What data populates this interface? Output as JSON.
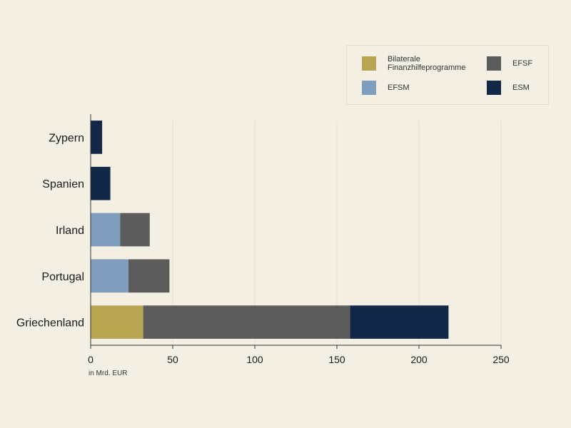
{
  "chart_data": {
    "type": "bar",
    "orientation": "horizontal",
    "stacked": true,
    "title": "",
    "xlabel": "in Mrd. EUR",
    "ylabel": "",
    "xlim": [
      0,
      250
    ],
    "xticks": [
      0,
      50,
      100,
      150,
      200,
      250
    ],
    "grid": true,
    "legend_position": "top-right",
    "categories": [
      "Zypern",
      "Spanien",
      "Irland",
      "Portugal",
      "Griechenland"
    ],
    "series": [
      {
        "name": "Bilaterale Finanzhilfeprogramme",
        "color": "#b8a552",
        "values": [
          0,
          0,
          0,
          0,
          32
        ]
      },
      {
        "name": "EFSM",
        "color": "#7f9dbd",
        "values": [
          0,
          0,
          18,
          23,
          0
        ]
      },
      {
        "name": "EFSF",
        "color": "#5c5c5c",
        "values": [
          0,
          0,
          18,
          25,
          126
        ]
      },
      {
        "name": "ESM",
        "color": "#132746",
        "values": [
          7,
          12,
          0,
          0,
          60
        ]
      }
    ]
  },
  "legend": {
    "items": [
      {
        "key": "bilateral",
        "label": "Bilaterale Finanzhilfeprogramme",
        "color": "#b8a552"
      },
      {
        "key": "efsf",
        "label": "EFSF",
        "color": "#5c5c5c"
      },
      {
        "key": "efsm",
        "label": "EFSM",
        "color": "#7f9dbd"
      },
      {
        "key": "esm",
        "label": "ESM",
        "color": "#132746"
      }
    ]
  },
  "colors": {
    "background": "#f3efe3",
    "gridline": "#e3dfd3",
    "axis": "#333333",
    "text": "#1a1a1a"
  }
}
